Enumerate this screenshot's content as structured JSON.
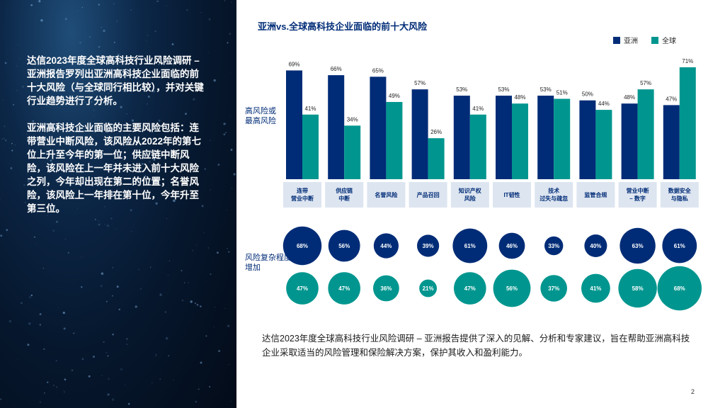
{
  "left_panel": {
    "paragraph1": "达信2023年度全球高科技行业风险调研 – 亚洲报告罗列出亚洲高科技企业面临的前十大风险（与全球同行相比较），并对关键行业趋势进行了分析。",
    "paragraph2": "亚洲高科技企业面临的主要风险包括：连带营业中断风险，该风险从2022年的第七位上升至今年的第一位；供应链中断风险，该风险在上一年并未进入前十大风险之列，今年却出现在第二的位置；名誉风险，该风险上一年排在第十位，今年升至第三位。"
  },
  "chart_data": {
    "type": "bar",
    "title": "亚洲vs.全球高科技企业面临的前十大风险",
    "categories": [
      [
        "连带",
        "营业中断"
      ],
      [
        "供应链",
        "中断"
      ],
      [
        "名誉风险"
      ],
      [
        "产品召回"
      ],
      [
        "知识产权",
        "风险"
      ],
      [
        "IT韧性"
      ],
      [
        "技术",
        "过失与疏忽"
      ],
      [
        "监管合规"
      ],
      [
        "营业中断",
        "– 数字"
      ],
      [
        "数据安全",
        "与隐私"
      ]
    ],
    "series": [
      {
        "name": "亚洲",
        "color": "#002c77",
        "values": [
          69,
          66,
          65,
          57,
          53,
          53,
          53,
          50,
          48,
          47
        ]
      },
      {
        "name": "全球",
        "color": "#00968f",
        "values": [
          41,
          34,
          49,
          26,
          41,
          48,
          51,
          44,
          57,
          71
        ]
      }
    ],
    "value_suffix": "%",
    "ylabel": [
      "高风险或",
      "最高风险"
    ],
    "ylim": [
      0,
      71
    ],
    "legend_position": "top-right",
    "category_box_color": "#dde5f0",
    "bubble_label": [
      "风险复杂程度",
      "增加"
    ],
    "bubbles": {
      "asia": [
        68,
        56,
        44,
        39,
        61,
        46,
        33,
        40,
        63,
        61
      ],
      "global": [
        47,
        47,
        36,
        21,
        47,
        56,
        37,
        41,
        58,
        68
      ]
    }
  },
  "footer": {
    "text": "达信2023年度全球高科技行业风险调研 – 亚洲报告提供了深入的见解、分析和专家建议，旨在帮助亚洲高科技企业采取适当的风险管理和保险解决方案，保护其收入和盈利能力。"
  },
  "page_number": "2"
}
